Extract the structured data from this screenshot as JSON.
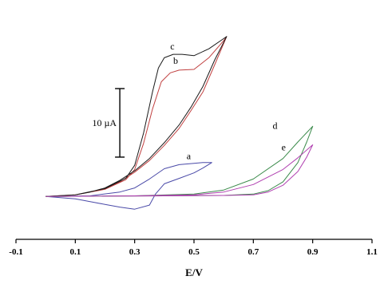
{
  "chart_data": {
    "type": "line",
    "xlabel": "E/V",
    "ylabel": "",
    "xlim": [
      -0.1,
      1.1
    ],
    "ylim": [
      -6,
      28
    ],
    "x_ticks": [
      -0.1,
      0.1,
      0.3,
      0.5,
      0.7,
      0.9,
      1.1
    ],
    "x_tick_labels": [
      "-0.1",
      "0.1",
      "0.3",
      "0.5",
      "0.7",
      "0.9",
      "1.1"
    ],
    "grid": false,
    "legend": "none",
    "scale_bar": {
      "label": "10 µA",
      "value": 10,
      "x": 0.25,
      "y_low": 6,
      "y_high": 16
    },
    "series": [
      {
        "name": "a",
        "color": "#4a4aa8",
        "label_at": [
          0.475,
          5.7
        ],
        "points": [
          [
            0.0,
            0.25
          ],
          [
            0.15,
            0.35
          ],
          [
            0.25,
            0.9
          ],
          [
            0.3,
            1.5
          ],
          [
            0.35,
            2.8
          ],
          [
            0.4,
            4.3
          ],
          [
            0.45,
            4.9
          ],
          [
            0.5,
            5.1
          ],
          [
            0.53,
            5.2
          ],
          [
            0.56,
            5.2
          ],
          [
            0.53,
            4.4
          ],
          [
            0.5,
            3.7
          ],
          [
            0.45,
            2.9
          ],
          [
            0.4,
            2.1
          ],
          [
            0.37,
            0.6
          ],
          [
            0.35,
            -1.0
          ],
          [
            0.3,
            -1.6
          ],
          [
            0.25,
            -1.3
          ],
          [
            0.2,
            -0.9
          ],
          [
            0.15,
            -0.5
          ],
          [
            0.1,
            -0.1
          ],
          [
            0.0,
            0.25
          ]
        ]
      },
      {
        "name": "b",
        "color": "#c04040",
        "label_at": [
          0.43,
          19.6
        ],
        "points": [
          [
            0.0,
            0.25
          ],
          [
            0.1,
            0.5
          ],
          [
            0.2,
            1.3
          ],
          [
            0.27,
            2.7
          ],
          [
            0.3,
            4.2
          ],
          [
            0.33,
            8.0
          ],
          [
            0.36,
            13.0
          ],
          [
            0.39,
            17.0
          ],
          [
            0.42,
            18.3
          ],
          [
            0.45,
            18.7
          ],
          [
            0.5,
            18.8
          ],
          [
            0.55,
            20.5
          ],
          [
            0.6,
            23.0
          ],
          [
            0.61,
            23.6
          ],
          [
            0.57,
            19.5
          ],
          [
            0.53,
            15.5
          ],
          [
            0.49,
            12.8
          ],
          [
            0.45,
            10.2
          ],
          [
            0.4,
            7.7
          ],
          [
            0.35,
            5.5
          ],
          [
            0.3,
            3.8
          ],
          [
            0.25,
            2.4
          ],
          [
            0.2,
            1.4
          ],
          [
            0.15,
            0.9
          ],
          [
            0.1,
            0.5
          ],
          [
            0.0,
            0.25
          ]
        ]
      },
      {
        "name": "c",
        "color": "#1a1a1a",
        "label_at": [
          0.42,
          21.7
        ],
        "points": [
          [
            0.0,
            0.25
          ],
          [
            0.1,
            0.5
          ],
          [
            0.2,
            1.4
          ],
          [
            0.27,
            2.9
          ],
          [
            0.3,
            4.8
          ],
          [
            0.33,
            9.5
          ],
          [
            0.36,
            15.5
          ],
          [
            0.38,
            19.0
          ],
          [
            0.4,
            20.5
          ],
          [
            0.43,
            21.0
          ],
          [
            0.46,
            21.0
          ],
          [
            0.5,
            20.8
          ],
          [
            0.55,
            21.8
          ],
          [
            0.6,
            23.3
          ],
          [
            0.61,
            23.6
          ],
          [
            0.57,
            20.2
          ],
          [
            0.53,
            16.3
          ],
          [
            0.49,
            13.3
          ],
          [
            0.45,
            10.7
          ],
          [
            0.4,
            8.1
          ],
          [
            0.35,
            5.8
          ],
          [
            0.3,
            4.0
          ],
          [
            0.25,
            2.6
          ],
          [
            0.2,
            1.5
          ],
          [
            0.15,
            0.9
          ],
          [
            0.1,
            0.5
          ],
          [
            0.0,
            0.25
          ]
        ]
      },
      {
        "name": "d",
        "color": "#3a8a4a",
        "label_at": [
          0.765,
          10.1
        ],
        "points": [
          [
            0.0,
            0.25
          ],
          [
            0.3,
            0.35
          ],
          [
            0.5,
            0.6
          ],
          [
            0.6,
            1.2
          ],
          [
            0.7,
            2.8
          ],
          [
            0.8,
            5.8
          ],
          [
            0.85,
            8.2
          ],
          [
            0.9,
            10.5
          ],
          [
            0.88,
            8.2
          ],
          [
            0.85,
            5.2
          ],
          [
            0.8,
            2.4
          ],
          [
            0.75,
            1.1
          ],
          [
            0.7,
            0.6
          ],
          [
            0.6,
            0.4
          ],
          [
            0.4,
            0.35
          ],
          [
            0.0,
            0.25
          ]
        ]
      },
      {
        "name": "e",
        "color": "#b040b0",
        "label_at": [
          0.795,
          7.0
        ],
        "points": [
          [
            0.0,
            0.25
          ],
          [
            0.3,
            0.35
          ],
          [
            0.5,
            0.5
          ],
          [
            0.6,
            0.9
          ],
          [
            0.7,
            2.0
          ],
          [
            0.8,
            4.2
          ],
          [
            0.85,
            5.9
          ],
          [
            0.9,
            7.8
          ],
          [
            0.88,
            6.0
          ],
          [
            0.85,
            3.9
          ],
          [
            0.8,
            1.9
          ],
          [
            0.75,
            0.9
          ],
          [
            0.7,
            0.5
          ],
          [
            0.6,
            0.4
          ],
          [
            0.4,
            0.35
          ],
          [
            0.0,
            0.25
          ]
        ]
      }
    ]
  }
}
